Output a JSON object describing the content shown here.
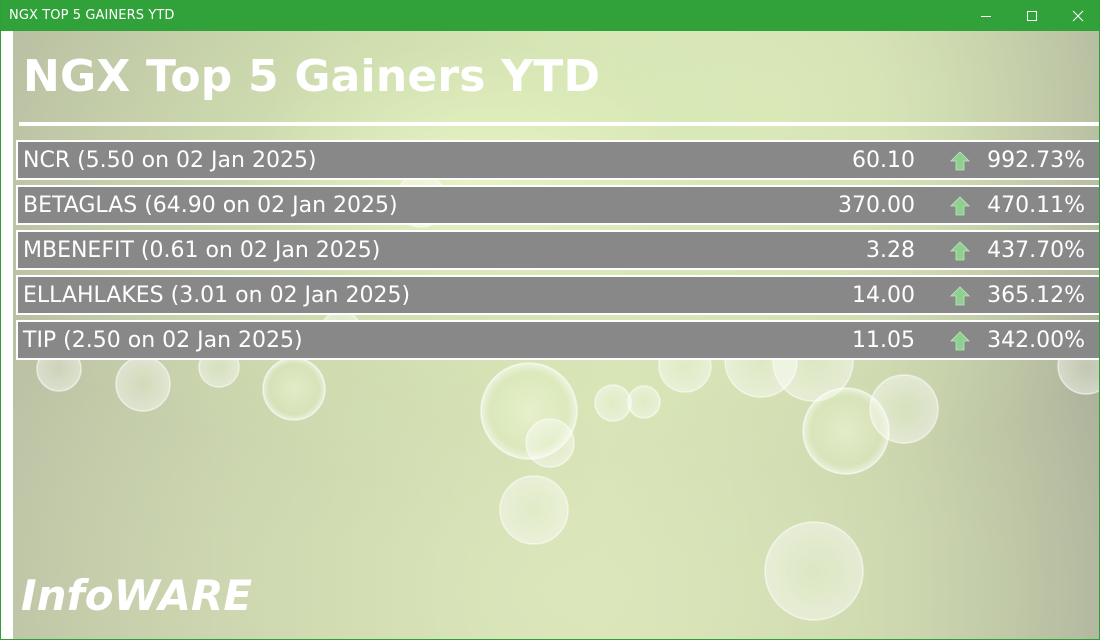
{
  "window": {
    "title": "NGX TOP 5 GAINERS YTD",
    "controls": {
      "minimize_icon": "minimize-icon",
      "maximize_icon": "maximize-icon",
      "close_icon": "close-icon"
    }
  },
  "page": {
    "heading": "NGX Top 5 Gainers YTD",
    "brand": "InfoWARE"
  },
  "colors": {
    "titlebar": "#31a13a",
    "row_background": "#888888",
    "up_arrow": "#8fd090",
    "text": "#ffffff"
  },
  "gainers": [
    {
      "label": "NCR (5.50 on 02 Jan 2025)",
      "price": "60.10",
      "direction_icon": "up-arrow-icon",
      "change": "992.73%"
    },
    {
      "label": "BETAGLAS (64.90 on 02 Jan 2025)",
      "price": "370.00",
      "direction_icon": "up-arrow-icon",
      "change": "470.11%"
    },
    {
      "label": "MBENEFIT (0.61 on 02 Jan 2025)",
      "price": "3.28",
      "direction_icon": "up-arrow-icon",
      "change": "437.70%"
    },
    {
      "label": "ELLAHLAKES (3.01 on 02 Jan 2025)",
      "price": "14.00",
      "direction_icon": "up-arrow-icon",
      "change": "365.12%"
    },
    {
      "label": "TIP (2.50 on 02 Jan 2025)",
      "price": "11.05",
      "direction_icon": "up-arrow-icon",
      "change": "342.00%"
    }
  ]
}
